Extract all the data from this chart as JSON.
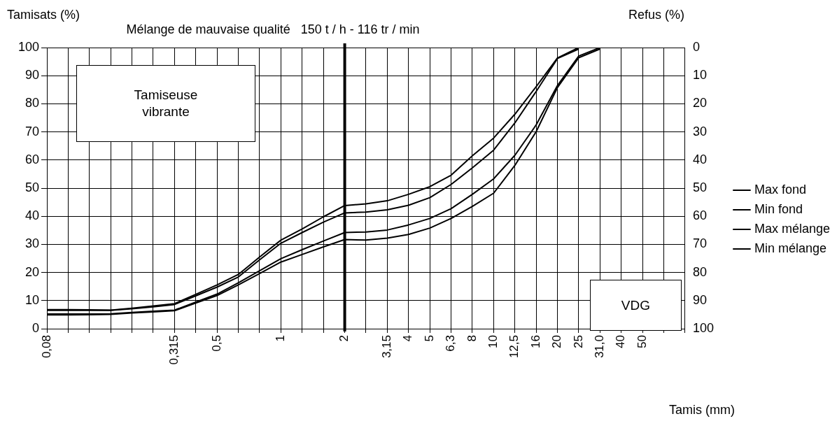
{
  "chart_data": {
    "type": "line",
    "title": "Mélange de mauvaise qualité   150 t / h - 116 tr / min",
    "xlabel": "Tamis (mm)",
    "ylabel": "Tamisats (%)",
    "y2label": "Refus (%)",
    "categories": [
      "0,08",
      null,
      null,
      null,
      null,
      null,
      "0,315",
      null,
      "0,5",
      null,
      null,
      "1",
      null,
      null,
      "2",
      null,
      "3,15",
      "4",
      "5",
      "6,3",
      "8",
      "10",
      "12,5",
      "16",
      "20",
      "25",
      "31,0",
      "40",
      "50",
      null,
      null
    ],
    "series": [
      {
        "name": "Max fond",
        "color": "#000000",
        "values": [
          6.8,
          6.8,
          6.7,
          6.6,
          7.3,
          8.1,
          8.9,
          12.2,
          15.6,
          19.3,
          25.5,
          31.5,
          35.5,
          39.8,
          43.8,
          44.4,
          45.5,
          47.8,
          50.5,
          54.6,
          61.5,
          67.8,
          76.3,
          86.1,
          96.3,
          100,
          null,
          null,
          null,
          null,
          null
        ]
      },
      {
        "name": "Min fond",
        "color": "#000000",
        "values": [
          6.5,
          6.5,
          6.5,
          6.5,
          7.1,
          7.8,
          8.6,
          11.7,
          14.8,
          18.4,
          24.5,
          30.4,
          34.2,
          37.9,
          41.2,
          41.5,
          42.3,
          43.9,
          46.6,
          51.3,
          57.2,
          63.5,
          73.2,
          84.4,
          96.1,
          99.5,
          null,
          null,
          null,
          null,
          null
        ]
      },
      {
        "name": "Max mélange",
        "color": "#000000",
        "values": [
          5.2,
          5.2,
          5.2,
          5.3,
          5.8,
          6.2,
          6.6,
          9.5,
          12.3,
          16.3,
          20.6,
          24.9,
          28.1,
          31.2,
          34.2,
          34.4,
          35.1,
          36.9,
          39.2,
          42.7,
          47.8,
          53.3,
          61.7,
          72.5,
          86.5,
          97,
          100,
          null,
          null,
          null,
          null
        ]
      },
      {
        "name": "Min mélange",
        "color": "#000000",
        "values": [
          4.9,
          4.9,
          5.0,
          5.1,
          5.6,
          6.0,
          6.4,
          9.1,
          11.8,
          15.6,
          19.6,
          23.7,
          26.4,
          29.1,
          31.7,
          31.5,
          32.2,
          33.5,
          35.8,
          39.2,
          43.5,
          48.2,
          58.1,
          70.1,
          85.8,
          96.4,
          99.5,
          null,
          null,
          null,
          null
        ]
      }
    ],
    "ylim": [
      0,
      100
    ],
    "yticks": [
      0,
      10,
      20,
      30,
      40,
      50,
      60,
      70,
      80,
      90,
      100
    ],
    "y2lim": [
      100,
      0
    ],
    "y2ticks": [
      0,
      10,
      20,
      30,
      40,
      50,
      60,
      70,
      80,
      90,
      100
    ],
    "ref_lines": [
      {
        "axis": "x",
        "value": "2",
        "color": "#000000"
      }
    ],
    "annotations": [
      "Tamiseuse vibrante",
      "VDG"
    ],
    "grid": true,
    "legend": "right",
    "marker": "none",
    "line_style": "solid"
  }
}
